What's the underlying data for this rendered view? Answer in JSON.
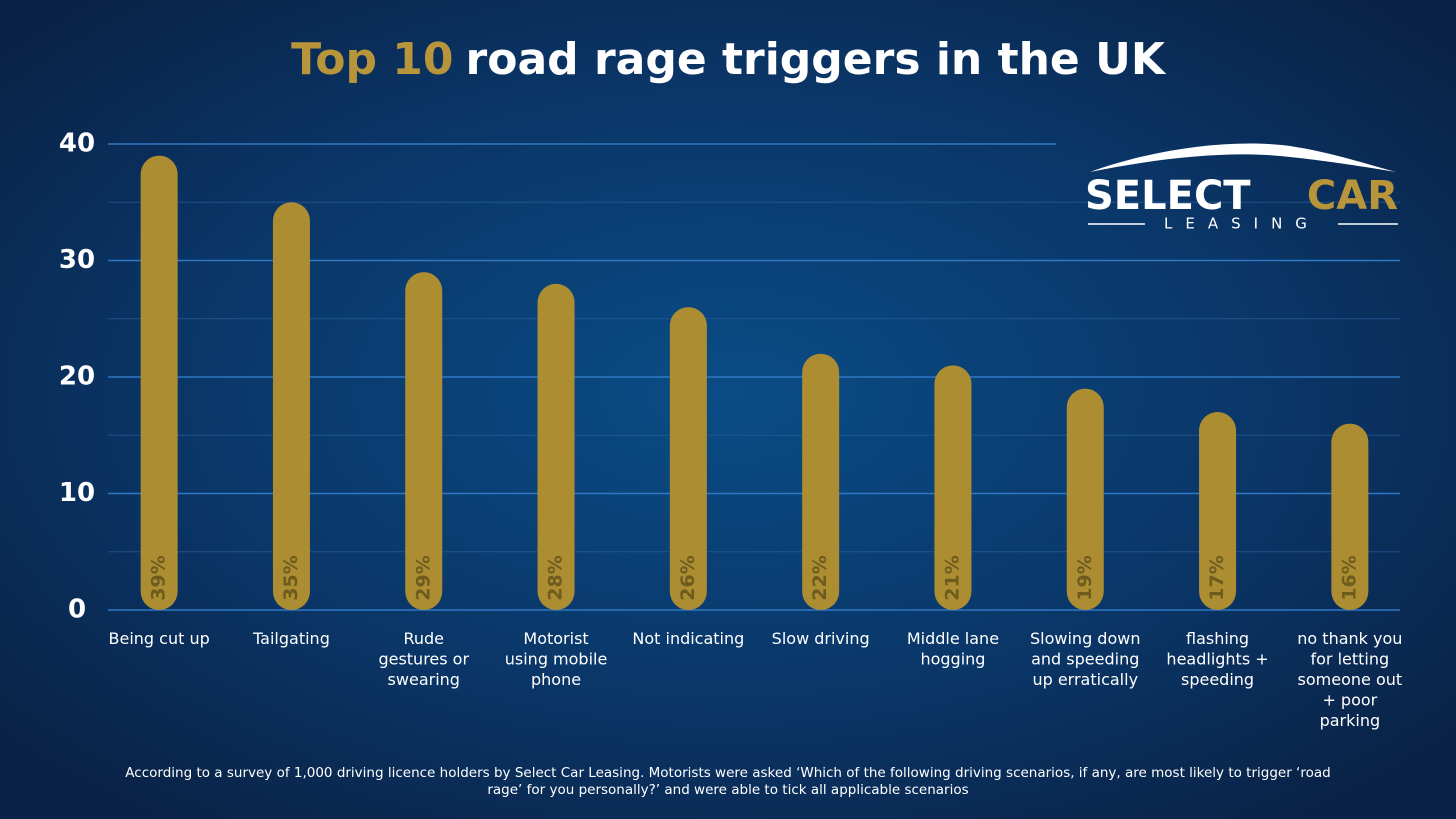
{
  "chart_data": {
    "type": "bar",
    "title_parts": [
      "Top 10",
      "road rage triggers in the UK"
    ],
    "categories": [
      "Being cut up",
      "Tailgating",
      "Rude gestures or swearing",
      "Motorist using mobile phone",
      "Not indicating",
      "Slow driving",
      "Middle lane hogging",
      "Slowing down and speeding up erratically",
      "flashing headlights + speeding",
      "no thank you for letting someone out + poor parking"
    ],
    "values": [
      39,
      35,
      29,
      28,
      26,
      22,
      21,
      19,
      17,
      16
    ],
    "value_labels": [
      "39%",
      "35%",
      "29%",
      "28%",
      "26%",
      "22%",
      "21%",
      "19%",
      "17%",
      "16%"
    ],
    "color": "#ad8d32",
    "ylim": [
      0,
      40
    ],
    "yticks": [
      0,
      10,
      20,
      30,
      40
    ],
    "minor_yticks": [
      5,
      15,
      25,
      35
    ],
    "grid": true,
    "footnote": "According to a survey of 1,000 driving licence holders by Select Car Leasing. Motorists were asked ‘Which of the following driving scenarios, if any, are most likely to trigger ‘road rage’ for you personally?’ and were able to tick all applicable scenarios",
    "logo": {
      "word1": "SELECT",
      "word2": "CAR",
      "word3": "LEASING"
    }
  }
}
